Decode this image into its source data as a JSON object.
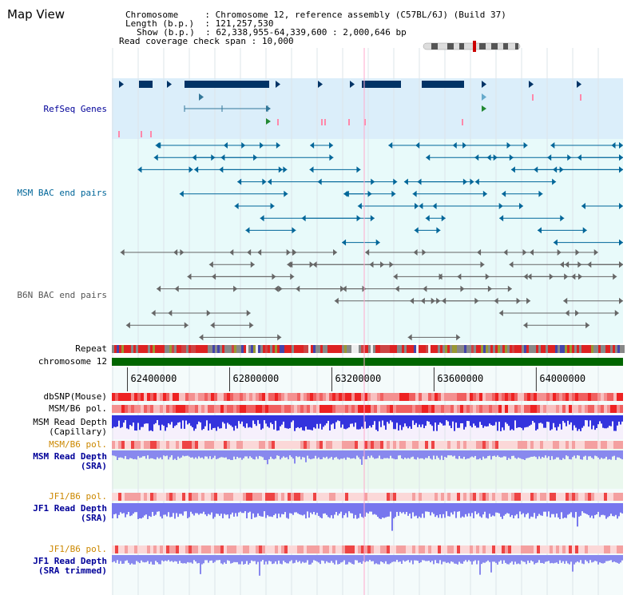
{
  "title": "Map View",
  "info": [
    {
      "label": "Chromosome",
      "sep": ":",
      "value": "Chromosome 12, reference assembly (C57BL/6J) (Build 37)"
    },
    {
      "label": "Length (b.p.)",
      "sep": ":",
      "value": "121,257,530"
    },
    {
      "label": "Show (b.p.)",
      "sep": ":",
      "value": "62,338,955-64,339,600 : 2,000,646 bp"
    },
    {
      "label": "Read coverage check span",
      "sep": ":",
      "value": "10,000"
    }
  ],
  "colors": {
    "refseq_bg": "#dbeefa",
    "bac_bg": "#e8fafa",
    "gene": "#003366",
    "msm_bac": "#006699",
    "b6n_bac": "#666666",
    "chromosome": "#006600",
    "depth_msm": "#3333dd",
    "depth_sra": "#8888ee",
    "label_blue": "#000099",
    "label_orange": "#cc8800"
  },
  "tracks": {
    "refseq": "RefSeq Genes",
    "msm_bac": "MSM BAC end pairs",
    "b6n_bac": "B6N BAC end pairs",
    "repeat": "Repeat",
    "chromosome": "chromosome 12",
    "dbsnp": "dbSNP(Mouse)",
    "msm_b6_pol": "MSM/B6 pol.",
    "msm_depth_cap_1": "MSM Read Depth",
    "msm_depth_cap_2": "(Capillary)",
    "msm_b6_pol2": "MSM/B6 pol.",
    "msm_depth_sra_1": "MSM Read Depth",
    "msm_depth_sra_2": "(SRA)",
    "jf1_b6_pol": "JF1/B6 pol.",
    "jf1_depth_sra_1": "JF1 Read Depth",
    "jf1_depth_sra_2": "(SRA)",
    "jf1_b6_pol2": "JF1/B6 pol.",
    "jf1_depth_trim_1": "JF1 Read Depth",
    "jf1_depth_trim_2": "(SRA trimmed)"
  },
  "axis": {
    "start": 62338955,
    "end": 64339600,
    "ticks": [
      62400000,
      62800000,
      63200000,
      63600000,
      64000000
    ],
    "tick_labels": [
      "62400000",
      "62800000",
      "63200000",
      "63600000",
      "64000000"
    ]
  }
}
